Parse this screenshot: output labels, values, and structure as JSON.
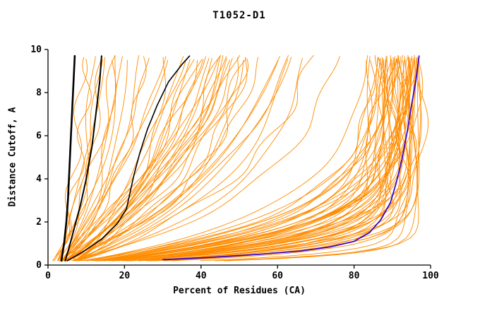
{
  "page": {
    "background": "#ffffff"
  },
  "chart_data": {
    "type": "line",
    "title": "T1052-D1",
    "xlabel": "Percent of Residues (CA)",
    "ylabel": "Distance Cutoff, A",
    "xlim": [
      0,
      100
    ],
    "ylim": [
      0,
      10
    ],
    "x_ticks": [
      0,
      20,
      40,
      60,
      80,
      100
    ],
    "y_ticks": [
      0,
      2,
      4,
      6,
      8,
      10
    ],
    "grid": false,
    "legend": "none",
    "colors": {
      "models": "#ff8c00",
      "reference": "#000000",
      "best": "#3300cc",
      "axis": "#000000"
    },
    "orange_curves": [
      [
        3,
        94,
        0.7
      ],
      [
        4,
        93,
        1.0
      ],
      [
        2,
        95,
        1.3
      ],
      [
        5,
        90,
        0.8
      ],
      [
        3,
        92,
        1.6
      ],
      [
        4,
        91,
        0.6
      ],
      [
        6,
        88,
        1.1
      ],
      [
        2,
        96,
        0.9
      ],
      [
        3,
        93,
        2.0
      ],
      [
        5,
        89,
        1.4
      ],
      [
        4,
        90,
        0.5
      ],
      [
        3,
        91,
        1.8
      ],
      [
        2,
        92,
        1.2
      ],
      [
        6,
        85,
        2.3
      ],
      [
        4,
        88,
        0.9
      ],
      [
        5,
        91,
        1.1
      ],
      [
        3,
        89,
        1.5
      ],
      [
        2,
        90,
        0.7
      ],
      [
        7,
        84,
        1.9
      ],
      [
        3,
        87,
        1.3
      ],
      [
        4,
        92,
        2.1
      ],
      [
        2,
        94,
        0.6
      ],
      [
        5,
        86,
        1.0
      ],
      [
        3,
        90,
        0.4
      ],
      [
        6,
        87,
        1.6
      ],
      [
        4,
        85,
        2.4
      ],
      [
        2,
        89,
        1.1
      ],
      [
        5,
        88,
        0.8
      ],
      [
        3,
        94,
        1.7
      ],
      [
        4,
        89,
        1.2
      ],
      [
        2,
        91,
        0.9
      ],
      [
        6,
        86,
        1.4
      ],
      [
        3,
        88,
        2.2
      ],
      [
        5,
        85,
        0.7
      ],
      [
        4,
        87,
        1.0
      ],
      [
        2,
        93,
        1.5
      ],
      [
        3,
        85,
        0.5
      ],
      [
        7,
        82,
        1.8
      ],
      [
        4,
        84,
        1.3
      ],
      [
        5,
        83,
        2.0
      ],
      [
        3,
        86,
        0.8
      ],
      [
        2,
        88,
        1.6
      ],
      [
        6,
        83,
        1.1
      ],
      [
        4,
        86,
        0.6
      ],
      [
        3,
        84,
        1.9
      ],
      [
        5,
        82,
        1.2
      ],
      [
        2,
        87,
        0.9
      ],
      [
        4,
        83,
        1.4
      ],
      [
        3,
        82,
        2.5
      ],
      [
        6,
        81,
        0.7
      ],
      [
        2,
        85,
        1.0
      ],
      [
        5,
        80,
        1.7
      ],
      [
        3,
        81,
        1.3
      ],
      [
        4,
        80,
        0.9
      ],
      [
        2,
        84,
        2.1
      ],
      [
        3,
        92,
        0.3
      ],
      [
        2,
        95,
        0.35
      ],
      [
        4,
        90,
        0.32
      ],
      [
        3,
        77,
        3.5
      ],
      [
        4,
        72,
        4.2
      ],
      [
        2,
        68,
        5.0
      ],
      [
        5,
        63,
        3.8
      ],
      [
        3,
        58,
        6.0
      ],
      [
        4,
        55,
        4.6
      ],
      [
        2,
        52,
        7.0
      ],
      [
        6,
        48,
        5.5
      ],
      [
        3,
        46,
        8.0
      ],
      [
        5,
        42,
        6.5
      ],
      [
        4,
        66,
        3.2
      ],
      [
        2,
        62,
        4.8
      ],
      [
        3,
        72,
        5.8
      ],
      [
        5,
        57,
        7.5
      ],
      [
        4,
        50,
        3.4
      ],
      [
        2,
        45,
        5.2
      ],
      [
        6,
        60,
        6.8
      ],
      [
        3,
        65,
        4.0
      ],
      [
        4,
        44,
        7.8
      ],
      [
        5,
        70,
        5.4
      ],
      [
        2,
        56,
        8.5
      ],
      [
        3,
        52,
        3.6
      ],
      [
        6,
        47,
        6.2
      ],
      [
        4,
        61,
        9.0
      ],
      [
        2,
        49,
        4.4
      ],
      [
        5,
        54,
        7.2
      ],
      [
        3,
        68,
        8.8
      ],
      [
        4,
        41,
        5.6
      ],
      [
        2,
        59,
        6.4
      ],
      [
        6,
        51,
        4.9
      ],
      [
        3,
        43,
        9.5
      ],
      [
        5,
        64,
        8.2
      ],
      [
        2,
        39,
        7.4
      ],
      [
        4,
        58,
        10.0
      ],
      [
        3,
        49,
        5.9
      ],
      [
        2,
        30,
        3.0
      ],
      [
        3,
        25,
        4.5
      ],
      [
        2,
        20,
        5.5
      ],
      [
        4,
        18,
        3.8
      ],
      [
        2,
        15,
        6.5
      ],
      [
        3,
        12,
        4.2
      ],
      [
        2,
        10,
        5.0
      ],
      [
        3,
        22,
        7.0
      ],
      [
        2,
        28,
        6.0
      ],
      [
        4,
        14,
        3.4
      ],
      [
        2,
        8,
        4.8
      ],
      [
        3,
        33,
        8.0
      ],
      [
        2,
        17,
        7.6
      ],
      [
        3,
        9,
        3.2
      ],
      [
        2,
        24,
        9.0
      ]
    ],
    "black_curves": [
      {
        "width": 2.6,
        "points": [
          [
            3.5,
            0.2
          ],
          [
            4.2,
            1
          ],
          [
            4.8,
            2
          ],
          [
            5.2,
            3
          ],
          [
            5.6,
            4.5
          ],
          [
            6.0,
            6
          ],
          [
            6.4,
            7.5
          ],
          [
            6.8,
            9
          ],
          [
            7.0,
            9.7
          ]
        ]
      },
      {
        "width": 2.0,
        "points": [
          [
            4.5,
            0.2
          ],
          [
            5.5,
            0.8
          ],
          [
            7,
            1.8
          ],
          [
            8.5,
            2.8
          ],
          [
            10,
            4
          ],
          [
            11.5,
            5.5
          ],
          [
            12.5,
            7
          ],
          [
            13.5,
            8.5
          ],
          [
            14,
            9.7
          ]
        ]
      },
      {
        "width": 1.6,
        "points": [
          [
            5,
            0.2
          ],
          [
            9,
            0.6
          ],
          [
            14,
            1.2
          ],
          [
            18,
            1.9
          ],
          [
            20.5,
            2.6
          ],
          [
            21.5,
            3.4
          ],
          [
            22.5,
            4.2
          ],
          [
            24,
            5.2
          ],
          [
            26,
            6.3
          ],
          [
            28.5,
            7.4
          ],
          [
            31.5,
            8.5
          ],
          [
            35,
            9.3
          ],
          [
            37,
            9.7
          ]
        ]
      }
    ],
    "blue_curve": {
      "width": 1.7,
      "points": [
        [
          30,
          0.25
        ],
        [
          42,
          0.35
        ],
        [
          55,
          0.5
        ],
        [
          66,
          0.65
        ],
        [
          74,
          0.85
        ],
        [
          80,
          1.1
        ],
        [
          84,
          1.5
        ],
        [
          87,
          2.1
        ],
        [
          89.5,
          2.9
        ],
        [
          91,
          3.8
        ],
        [
          92.5,
          4.9
        ],
        [
          93.8,
          6.1
        ],
        [
          95,
          7.4
        ],
        [
          96.2,
          8.6
        ],
        [
          97,
          9.7
        ]
      ]
    }
  }
}
